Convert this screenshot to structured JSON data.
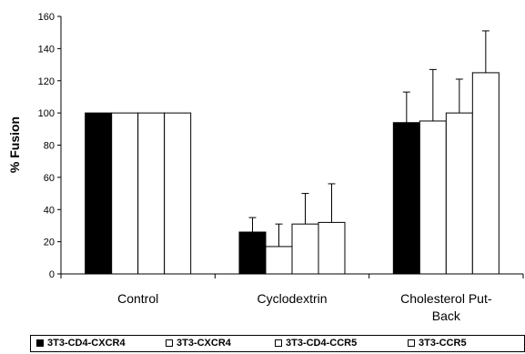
{
  "chart_data": {
    "type": "bar",
    "title": "",
    "xlabel": "",
    "ylabel": "% Fusion",
    "ylim": [
      0,
      160
    ],
    "yticks": [
      0,
      20,
      40,
      60,
      80,
      100,
      120,
      140,
      160
    ],
    "categories": [
      {
        "lines": [
          "Control"
        ]
      },
      {
        "lines": [
          "Cyclodextrin"
        ]
      },
      {
        "lines": [
          "Cholesterol Put-",
          "Back"
        ]
      }
    ],
    "series": [
      {
        "name": "3T3-CD4-CXCR4",
        "color": "#000000",
        "values": [
          100,
          26,
          94
        ],
        "errors": [
          0,
          9,
          19
        ]
      },
      {
        "name": "3T3-CXCR4",
        "color": "#ffffff",
        "values": [
          100,
          17,
          95
        ],
        "errors": [
          0,
          14,
          32
        ]
      },
      {
        "name": "3T3-CD4-CCR5",
        "color": "#ffffff",
        "values": [
          100,
          31,
          100
        ],
        "errors": [
          0,
          19,
          21
        ]
      },
      {
        "name": "3T3-CCR5",
        "color": "#ffffff",
        "values": [
          100,
          32,
          125
        ],
        "errors": [
          0,
          24,
          26
        ]
      }
    ],
    "grid": false,
    "legend_position": "bottom"
  }
}
